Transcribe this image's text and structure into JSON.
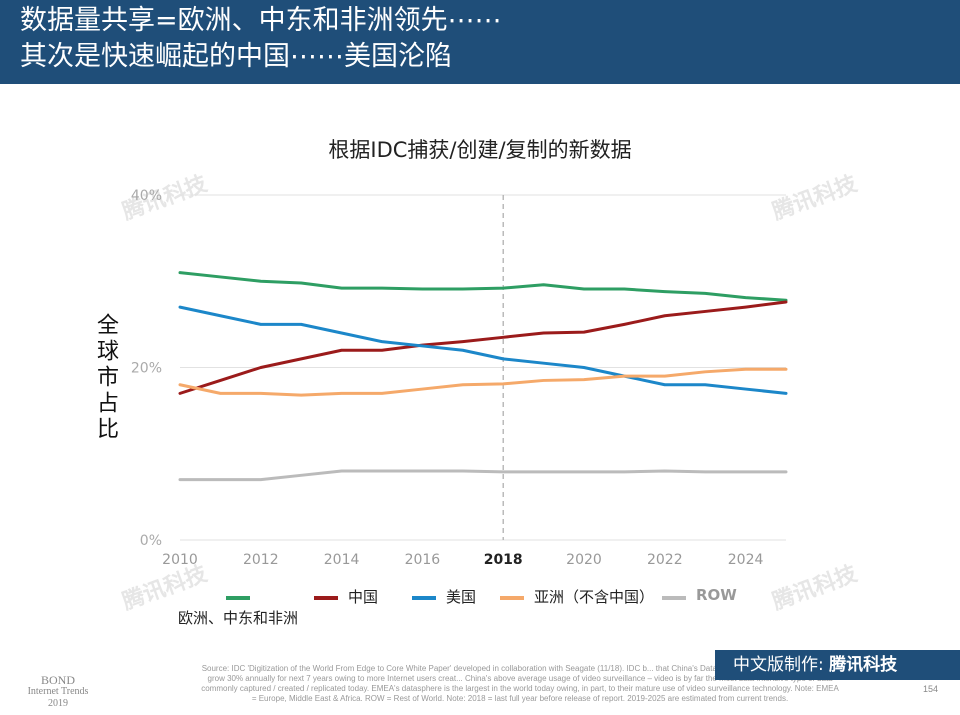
{
  "header": {
    "line1": "数据量共享=欧洲、中东和非洲领先⋯⋯",
    "line2": "其次是快速崛起的中国⋯⋯美国沦陷"
  },
  "watermark": "腾讯科技",
  "chart_data": {
    "type": "line",
    "title": "根据IDC捕获/创建/复制的新数据",
    "ylabel": "全球市占比",
    "ylim": [
      0,
      40
    ],
    "yticks": [
      "0%",
      "20%",
      "40%"
    ],
    "xlim": [
      2010,
      2025
    ],
    "xticks": [
      "2010",
      "2012",
      "2014",
      "2016",
      "2018",
      "2020",
      "2022",
      "2024"
    ],
    "highlight_x": "2018",
    "x": [
      2010,
      2011,
      2012,
      2013,
      2014,
      2015,
      2016,
      2017,
      2018,
      2019,
      2020,
      2021,
      2022,
      2023,
      2024,
      2025
    ],
    "series": [
      {
        "name": "欧洲、中东和非洲",
        "color": "#2e9e63",
        "values": [
          31,
          30.5,
          30,
          29.8,
          29.2,
          29.2,
          29.1,
          29.1,
          29.2,
          29.6,
          29.1,
          29.1,
          28.8,
          28.6,
          28.1,
          27.8
        ]
      },
      {
        "name": "中国",
        "color": "#9b1b1b",
        "values": [
          17,
          18.5,
          20,
          21,
          22,
          22,
          22.6,
          23,
          23.5,
          24,
          24.1,
          25,
          26,
          26.5,
          27,
          27.6
        ]
      },
      {
        "name": "美国",
        "color": "#1c87c9",
        "values": [
          27,
          26,
          25,
          25,
          24,
          23,
          22.5,
          22,
          21,
          20.5,
          20,
          19,
          18,
          18,
          17.5,
          17
        ]
      },
      {
        "name": "亚洲（不含中国）",
        "color": "#f5a96a",
        "values": [
          18,
          17,
          17,
          16.8,
          17,
          17,
          17.5,
          18,
          18.1,
          18.5,
          18.6,
          19,
          19,
          19.5,
          19.8,
          19.8
        ]
      },
      {
        "name": "ROW",
        "color": "#bbbbbb",
        "values": [
          7,
          7,
          7,
          7.5,
          8,
          8,
          8,
          8,
          7.9,
          7.9,
          7.9,
          7.9,
          8,
          7.9,
          7.9,
          7.9
        ]
      }
    ]
  },
  "footer": {
    "made_by": "中文版制作:",
    "brand": "腾讯科技",
    "bond1": "BOND",
    "bond2": "Internet Trends",
    "bond3": "2019",
    "source": "Source: IDC 'Digitization of the World From Edge to Core White Paper' developed in collaboration with Seagate (11/18). IDC b... that China's Data captured / created / replicated will grow 30% annually for next 7 years owing to more Internet users creat... China's above average usage of video surveillance – video is by far the most data-intensive type of data commonly captured / created / replicated today. EMEA's datasphere is the largest in the world today owing, in part, to their mature use of video surveillance technology. Note: EMEA = Europe, Middle East & Africa. ROW = Rest of World. Note: 2018 = last full year before release of report. 2019-2025 are estimated from current trends.",
    "page": "154"
  }
}
